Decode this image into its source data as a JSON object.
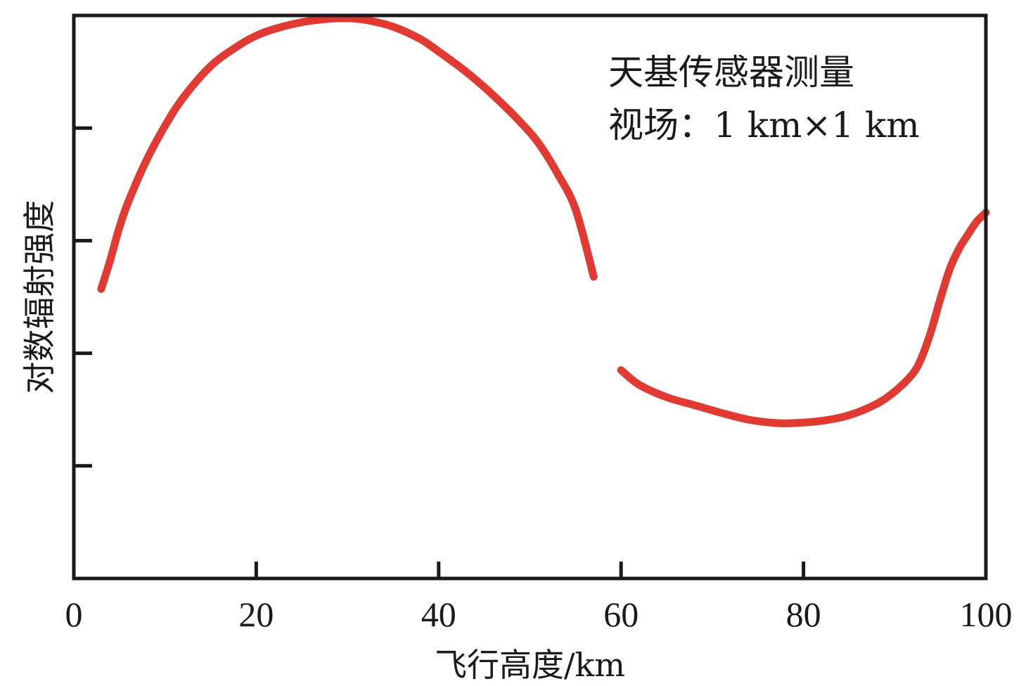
{
  "chart_data": {
    "type": "line",
    "title": "",
    "xlabel": "飞行高度/km",
    "ylabel": "对数辐射强度",
    "xlim": [
      0,
      100
    ],
    "ylim": [
      0,
      5
    ],
    "x_ticks": [
      0,
      20,
      40,
      60,
      80,
      100
    ],
    "x_tick_labels": [
      "0",
      "20",
      "40",
      "60",
      "80",
      "100"
    ],
    "y_ticks": [
      1,
      2,
      3,
      4
    ],
    "y_tick_labels_shown": false,
    "grid": false,
    "legend": "none",
    "annotation_lines": [
      "天基传感器测量",
      "视场：1 km×1 km"
    ],
    "annotation_position": "top-right",
    "series": [
      {
        "color": "#e03a33",
        "x": [
          3,
          4,
          5,
          6,
          8,
          10,
          12,
          15,
          18,
          20,
          22,
          25,
          28,
          30,
          32,
          35,
          38,
          40,
          43,
          46,
          49,
          51,
          53,
          55,
          57
        ],
        "y": [
          2.57,
          2.83,
          3.12,
          3.35,
          3.72,
          4.02,
          4.27,
          4.55,
          4.73,
          4.82,
          4.88,
          4.94,
          4.97,
          4.975,
          4.96,
          4.9,
          4.79,
          4.68,
          4.5,
          4.29,
          4.05,
          3.86,
          3.6,
          3.28,
          2.68
        ]
      },
      {
        "color": "#e03a33",
        "x": [
          60,
          62,
          65,
          68,
          71,
          74,
          77,
          79,
          82,
          85,
          88,
          90,
          92,
          93,
          94,
          95,
          96,
          97,
          98,
          99,
          100
        ],
        "y": [
          1.85,
          1.72,
          1.61,
          1.54,
          1.47,
          1.41,
          1.38,
          1.38,
          1.4,
          1.45,
          1.55,
          1.66,
          1.82,
          1.97,
          2.2,
          2.48,
          2.74,
          2.92,
          3.05,
          3.17,
          3.25
        ]
      }
    ]
  }
}
